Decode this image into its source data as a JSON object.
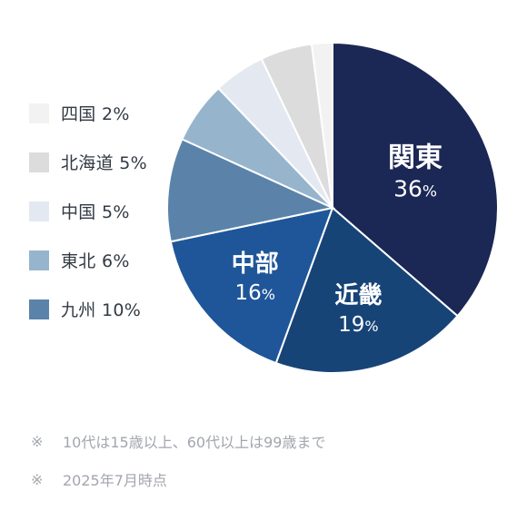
{
  "chart_data": {
    "type": "pie",
    "title": "",
    "slices": [
      {
        "label": "関東",
        "value": 36,
        "unit": "%",
        "color": "#1b2754",
        "text_color": "#ffffff"
      },
      {
        "label": "近畿",
        "value": 19,
        "unit": "%",
        "color": "#174477",
        "text_color": "#ffffff"
      },
      {
        "label": "中部",
        "value": 16,
        "unit": "%",
        "color": "#1f5699",
        "text_color": "#ffffff"
      },
      {
        "label": "九州",
        "value": 10,
        "unit": "%",
        "color": "#5b83aa",
        "text_color": "#ffffff"
      },
      {
        "label": "東北",
        "value": 6,
        "unit": "%",
        "color": "#97b4cd",
        "text_color": "#ffffff"
      },
      {
        "label": "中国",
        "value": 5,
        "unit": "%",
        "color": "#e4e9f1",
        "text_color": "#ffffff"
      },
      {
        "label": "北海道",
        "value": 5,
        "unit": "%",
        "color": "#dcdcdc",
        "text_color": "#ffffff"
      },
      {
        "label": "四国",
        "value": 2,
        "unit": "%",
        "color": "#f2f2f2",
        "text_color": "#ffffff"
      }
    ],
    "legend": [
      {
        "text": "四国 2%",
        "color": "#f2f2f2"
      },
      {
        "text": "北海道 5%",
        "color": "#dcdcdc"
      },
      {
        "text": "中国 5%",
        "color": "#e4e9f1"
      },
      {
        "text": "東北 6%",
        "color": "#97b4cd"
      },
      {
        "text": "九州 10%",
        "color": "#5b83aa"
      }
    ],
    "legend_position": "left"
  },
  "notes": [
    {
      "mark": "※",
      "text": "10代は15歳以上、60代以上は99歳まで"
    },
    {
      "mark": "※",
      "text": "2025年7月時点"
    }
  ]
}
